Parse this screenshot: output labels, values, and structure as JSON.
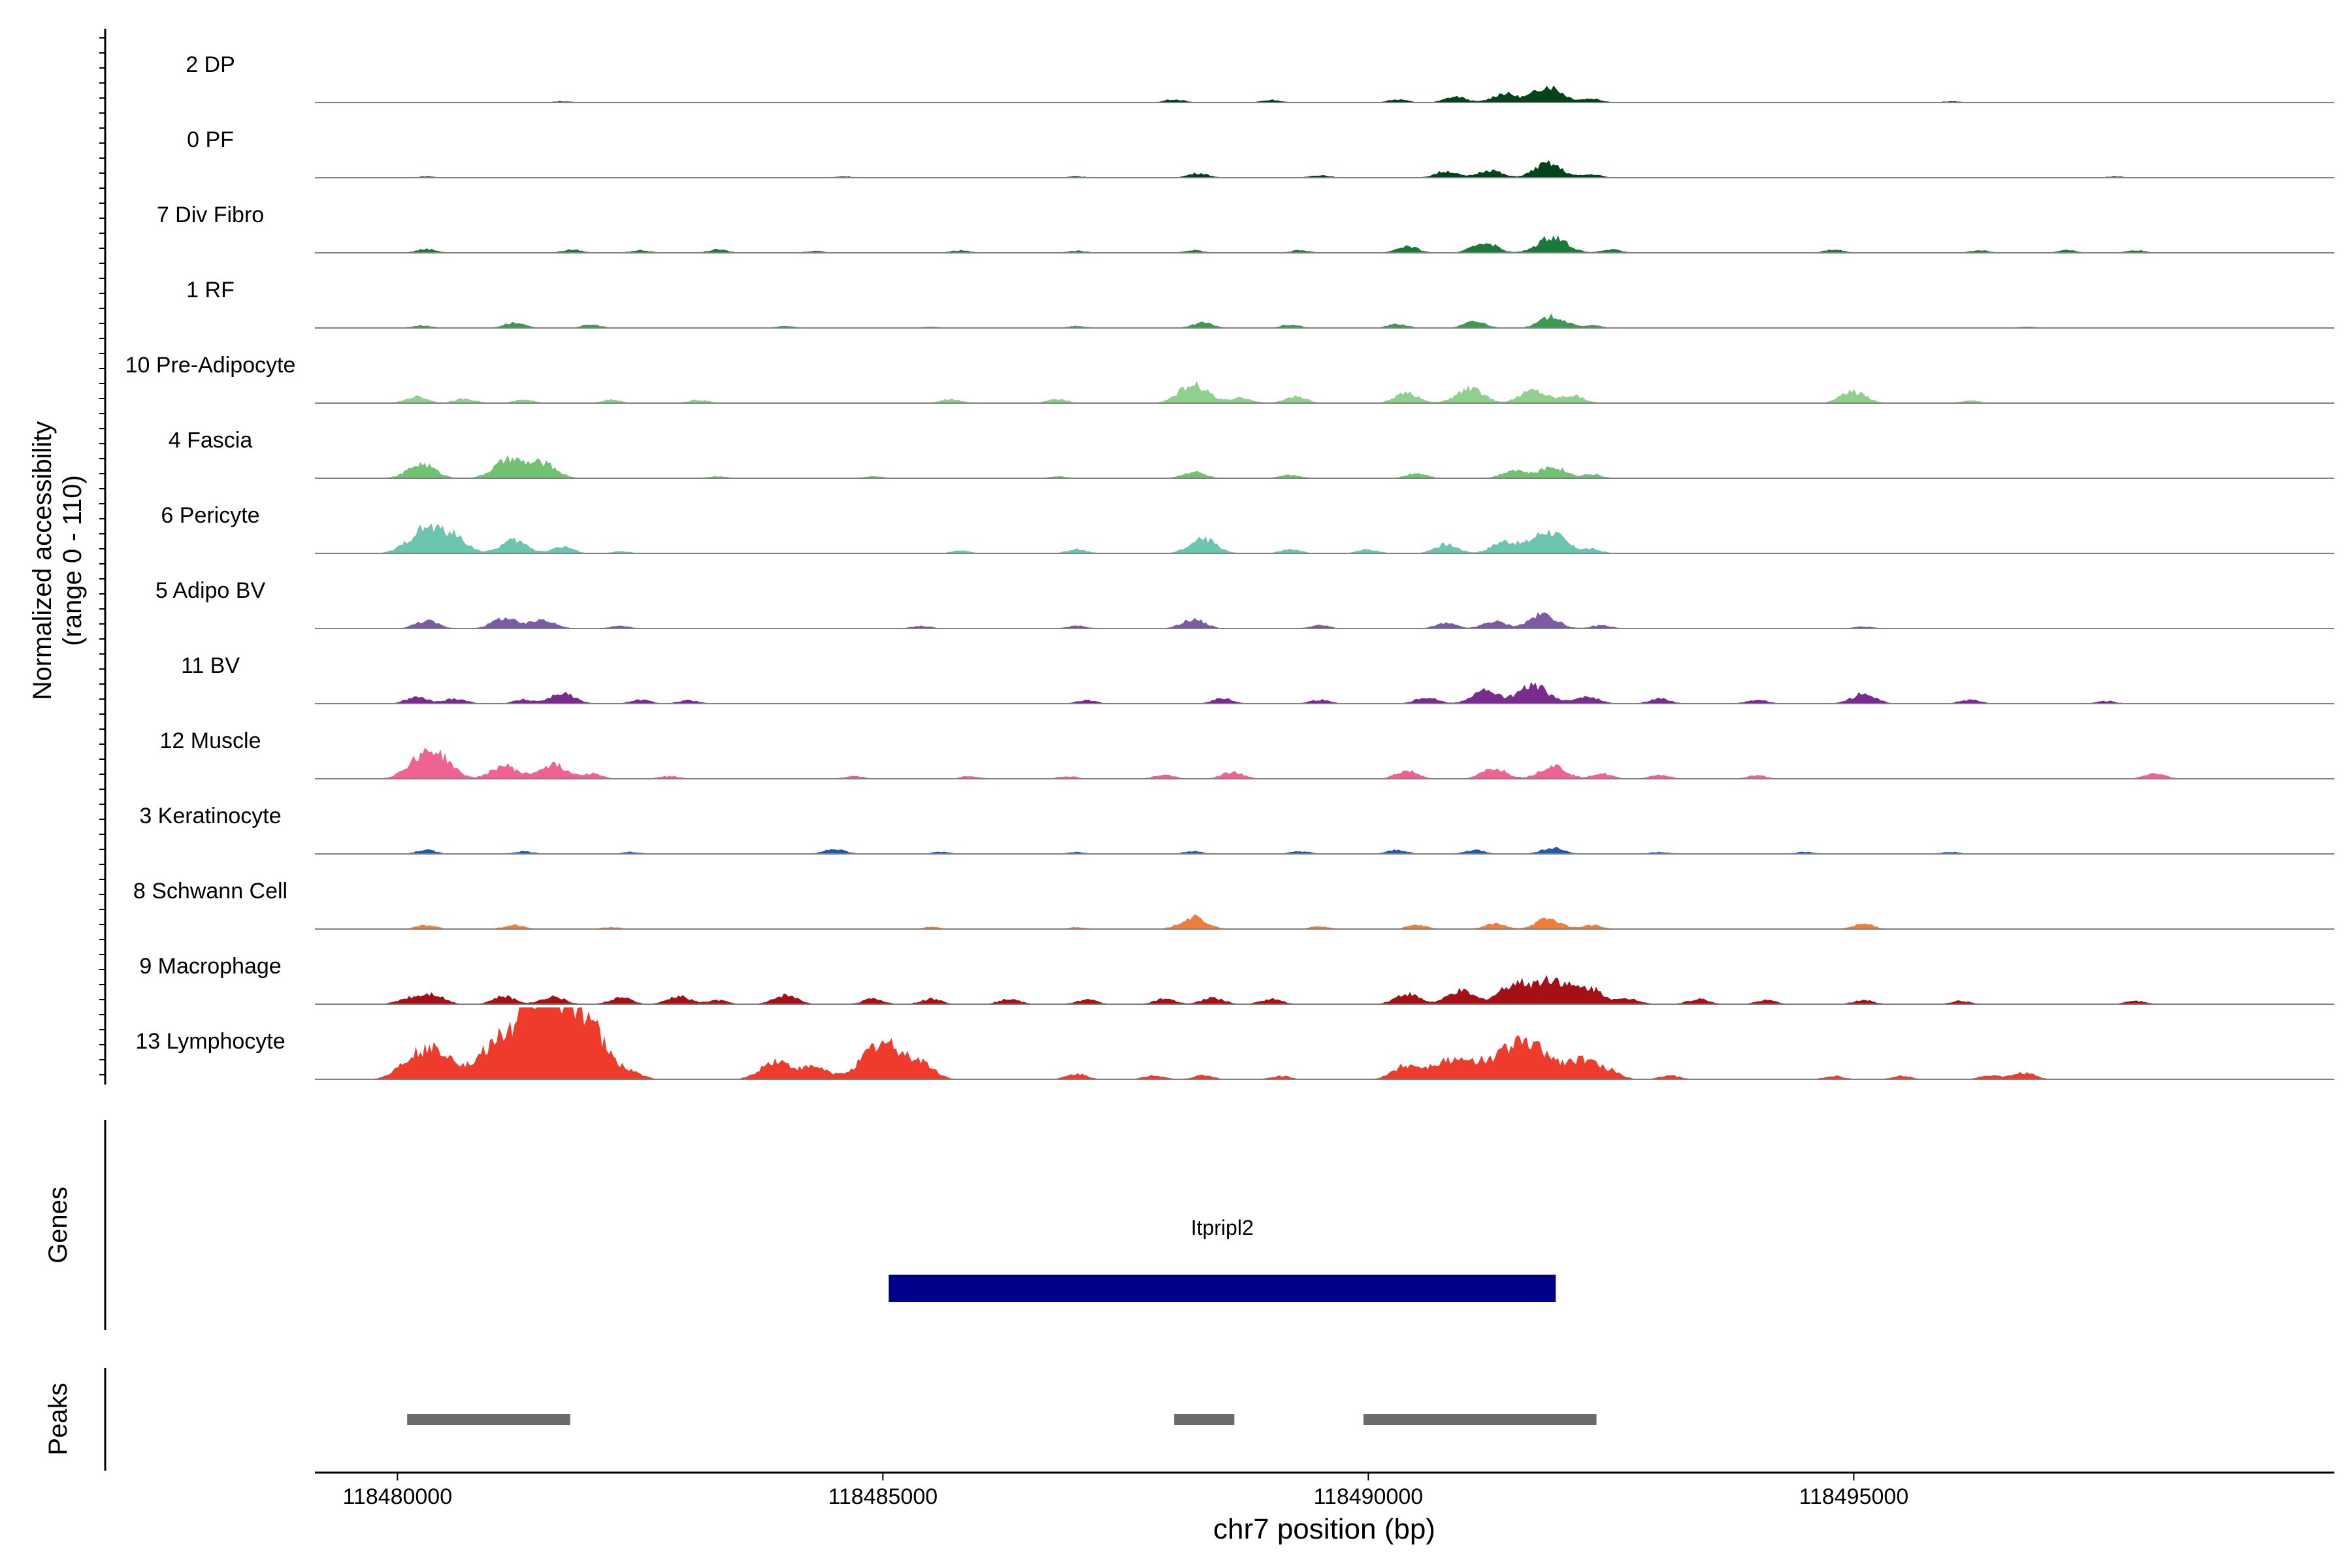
{
  "chart_data": {
    "type": "area",
    "title": "",
    "ylabel_line1": "Normalized accessibility",
    "ylabel_line2": "(range 0 - 110)",
    "xlabel": "chr7 position (bp)",
    "xlim": [
      118479150,
      118499950
    ],
    "ylim": [
      0,
      110
    ],
    "grid": false,
    "legend": "none",
    "x_ticks": [
      118480000,
      118485000,
      118490000,
      118495000
    ],
    "x_tick_labels": [
      "118480000",
      "118485000",
      "118490000",
      "118495000"
    ],
    "tracks": [
      {
        "name": "2 DP",
        "color": "#00441b",
        "peaks": [
          [
            118481700,
            2
          ],
          [
            118488000,
            5
          ],
          [
            118489000,
            4
          ],
          [
            118490300,
            5
          ],
          [
            118490900,
            9
          ],
          [
            118491400,
            14
          ],
          [
            118491850,
            25
          ],
          [
            118492300,
            6
          ],
          [
            118496000,
            2
          ]
        ]
      },
      {
        "name": "0 PF",
        "color": "#00441b",
        "peaks": [
          [
            118480300,
            2
          ],
          [
            118484600,
            2
          ],
          [
            118487000,
            2
          ],
          [
            118488250,
            7
          ],
          [
            118489500,
            4
          ],
          [
            118490800,
            10
          ],
          [
            118491250,
            12
          ],
          [
            118491850,
            22
          ],
          [
            118492300,
            5
          ],
          [
            118497700,
            2
          ]
        ]
      },
      {
        "name": "7 Div Fibro",
        "color": "#1a7a3a",
        "peaks": [
          [
            118480300,
            6
          ],
          [
            118481800,
            5
          ],
          [
            118482500,
            4
          ],
          [
            118483300,
            5
          ],
          [
            118484300,
            3
          ],
          [
            118485800,
            4
          ],
          [
            118487000,
            3
          ],
          [
            118488200,
            4
          ],
          [
            118489300,
            4
          ],
          [
            118490400,
            10
          ],
          [
            118491200,
            16
          ],
          [
            118491900,
            25
          ],
          [
            118492500,
            5
          ],
          [
            118494800,
            5
          ],
          [
            118496300,
            4
          ],
          [
            118497200,
            4
          ],
          [
            118497900,
            4
          ]
        ]
      },
      {
        "name": "1 RF",
        "color": "#3a9a50",
        "peaks": [
          [
            118480250,
            4
          ],
          [
            118481200,
            8
          ],
          [
            118482000,
            5
          ],
          [
            118484000,
            3
          ],
          [
            118485500,
            2
          ],
          [
            118487000,
            3
          ],
          [
            118488300,
            8
          ],
          [
            118489200,
            5
          ],
          [
            118490300,
            6
          ],
          [
            118491100,
            10
          ],
          [
            118491900,
            18
          ],
          [
            118492300,
            4
          ],
          [
            118496800,
            2
          ]
        ]
      },
      {
        "name": "10 Pre-Adipocyte",
        "color": "#8fd08c",
        "peaks": [
          [
            118480200,
            10
          ],
          [
            118480700,
            7
          ],
          [
            118481300,
            5
          ],
          [
            118482200,
            5
          ],
          [
            118483100,
            5
          ],
          [
            118485700,
            6
          ],
          [
            118486800,
            6
          ],
          [
            118488200,
            28
          ],
          [
            118488700,
            8
          ],
          [
            118489250,
            10
          ],
          [
            118490400,
            15
          ],
          [
            118491050,
            22
          ],
          [
            118491700,
            20
          ],
          [
            118492100,
            12
          ],
          [
            118495000,
            18
          ],
          [
            118496200,
            4
          ]
        ]
      },
      {
        "name": "4 Fascia",
        "color": "#6fc270",
        "peaks": [
          [
            118480250,
            22
          ],
          [
            118481150,
            28
          ],
          [
            118481500,
            22
          ],
          [
            118483300,
            3
          ],
          [
            118484900,
            3
          ],
          [
            118486800,
            3
          ],
          [
            118488200,
            10
          ],
          [
            118489200,
            5
          ],
          [
            118490500,
            8
          ],
          [
            118491500,
            13
          ],
          [
            118491900,
            18
          ],
          [
            118492300,
            6
          ]
        ]
      },
      {
        "name": "6 Pericyte",
        "color": "#6cc5b0",
        "peaks": [
          [
            118480300,
            38
          ],
          [
            118480600,
            20
          ],
          [
            118481200,
            20
          ],
          [
            118481700,
            10
          ],
          [
            118482300,
            3
          ],
          [
            118485800,
            4
          ],
          [
            118487000,
            6
          ],
          [
            118488300,
            22
          ],
          [
            118489200,
            6
          ],
          [
            118490000,
            6
          ],
          [
            118490800,
            14
          ],
          [
            118491400,
            18
          ],
          [
            118491850,
            34
          ],
          [
            118492300,
            6
          ]
        ]
      },
      {
        "name": "5 Adipo BV",
        "color": "#7b5aa6",
        "peaks": [
          [
            118480300,
            12
          ],
          [
            118481100,
            16
          ],
          [
            118481500,
            14
          ],
          [
            118482300,
            4
          ],
          [
            118485400,
            4
          ],
          [
            118487000,
            4
          ],
          [
            118488200,
            14
          ],
          [
            118489500,
            5
          ],
          [
            118490800,
            8
          ],
          [
            118491300,
            11
          ],
          [
            118491800,
            22
          ],
          [
            118492400,
            5
          ],
          [
            118495100,
            3
          ]
        ]
      },
      {
        "name": "11 BV",
        "color": "#7a2b8f",
        "peaks": [
          [
            118480200,
            10
          ],
          [
            118480600,
            8
          ],
          [
            118481300,
            6
          ],
          [
            118481700,
            16
          ],
          [
            118482500,
            6
          ],
          [
            118483000,
            5
          ],
          [
            118487100,
            5
          ],
          [
            118488500,
            8
          ],
          [
            118489500,
            6
          ],
          [
            118490600,
            10
          ],
          [
            118491200,
            20
          ],
          [
            118491700,
            28
          ],
          [
            118492250,
            12
          ],
          [
            118493000,
            8
          ],
          [
            118494000,
            6
          ],
          [
            118495100,
            15
          ],
          [
            118496200,
            6
          ],
          [
            118497600,
            4
          ]
        ]
      },
      {
        "name": "12 Muscle",
        "color": "#f06292",
        "peaks": [
          [
            118480250,
            30
          ],
          [
            118480450,
            24
          ],
          [
            118481100,
            20
          ],
          [
            118481600,
            22
          ],
          [
            118482000,
            8
          ],
          [
            118482800,
            4
          ],
          [
            118484700,
            4
          ],
          [
            118485900,
            4
          ],
          [
            118486900,
            4
          ],
          [
            118487900,
            6
          ],
          [
            118488600,
            10
          ],
          [
            118490400,
            12
          ],
          [
            118491300,
            16
          ],
          [
            118491900,
            20
          ],
          [
            118492400,
            8
          ],
          [
            118493000,
            6
          ],
          [
            118494000,
            5
          ],
          [
            118498100,
            8
          ]
        ]
      },
      {
        "name": "3 Keratinocyte",
        "color": "#1f5aa6",
        "peaks": [
          [
            118480300,
            6
          ],
          [
            118481300,
            4
          ],
          [
            118482400,
            3
          ],
          [
            118484500,
            8
          ],
          [
            118485600,
            3
          ],
          [
            118487000,
            3
          ],
          [
            118488200,
            4
          ],
          [
            118489300,
            4
          ],
          [
            118490300,
            6
          ],
          [
            118491100,
            6
          ],
          [
            118491900,
            10
          ],
          [
            118493000,
            3
          ],
          [
            118494500,
            3
          ],
          [
            118496000,
            3
          ]
        ]
      },
      {
        "name": "8 Schwann Cell",
        "color": "#ef7e3b",
        "peaks": [
          [
            118480300,
            6
          ],
          [
            118481200,
            6
          ],
          [
            118482200,
            3
          ],
          [
            118485500,
            3
          ],
          [
            118487000,
            3
          ],
          [
            118488200,
            18
          ],
          [
            118489500,
            4
          ],
          [
            118490500,
            6
          ],
          [
            118491300,
            8
          ],
          [
            118491850,
            16
          ],
          [
            118492300,
            6
          ],
          [
            118495100,
            8
          ]
        ]
      },
      {
        "name": "9 Macrophage",
        "color": "#a50f15",
        "peaks": [
          [
            118480100,
            8
          ],
          [
            118480350,
            16
          ],
          [
            118481100,
            12
          ],
          [
            118481600,
            12
          ],
          [
            118482300,
            10
          ],
          [
            118482900,
            12
          ],
          [
            118483300,
            6
          ],
          [
            118484000,
            14
          ],
          [
            118484900,
            8
          ],
          [
            118485500,
            8
          ],
          [
            118486300,
            8
          ],
          [
            118487100,
            7
          ],
          [
            118487900,
            8
          ],
          [
            118488400,
            10
          ],
          [
            118489000,
            8
          ],
          [
            118490400,
            16
          ],
          [
            118490950,
            20
          ],
          [
            118491500,
            30
          ],
          [
            118491900,
            38
          ],
          [
            118492300,
            22
          ],
          [
            118492700,
            8
          ],
          [
            118493400,
            8
          ],
          [
            118494100,
            6
          ],
          [
            118495100,
            6
          ],
          [
            118496100,
            5
          ],
          [
            118497900,
            5
          ]
        ]
      },
      {
        "name": "13 Lymphocyte",
        "color": "#ef3b2c",
        "peaks": [
          [
            118480150,
            28
          ],
          [
            118480450,
            40
          ],
          [
            118480900,
            12
          ],
          [
            118481000,
            22
          ],
          [
            118481400,
            80
          ],
          [
            118481750,
            90
          ],
          [
            118482000,
            22
          ],
          [
            118482400,
            8
          ],
          [
            118483900,
            28
          ],
          [
            118484300,
            18
          ],
          [
            118485000,
            55
          ],
          [
            118485400,
            20
          ],
          [
            118487000,
            8
          ],
          [
            118487800,
            6
          ],
          [
            118488300,
            6
          ],
          [
            118489100,
            5
          ],
          [
            118490400,
            22
          ],
          [
            118490800,
            28
          ],
          [
            118491100,
            18
          ],
          [
            118491500,
            50
          ],
          [
            118491800,
            28
          ],
          [
            118492200,
            30
          ],
          [
            118492500,
            10
          ],
          [
            118493100,
            6
          ],
          [
            118494800,
            5
          ],
          [
            118495500,
            5
          ],
          [
            118496400,
            6
          ],
          [
            118496750,
            10
          ]
        ]
      }
    ],
    "genes": {
      "label": "Genes",
      "items": [
        {
          "name": "Itpripl2",
          "start": 118485060,
          "end": 118491930,
          "color": "#00008b"
        }
      ]
    },
    "peak_track": {
      "label": "Peaks",
      "color": "#6b6b6b",
      "regions": [
        [
          118480100,
          118481780
        ],
        [
          118488000,
          118488620
        ],
        [
          118489950,
          118492350
        ]
      ]
    }
  }
}
